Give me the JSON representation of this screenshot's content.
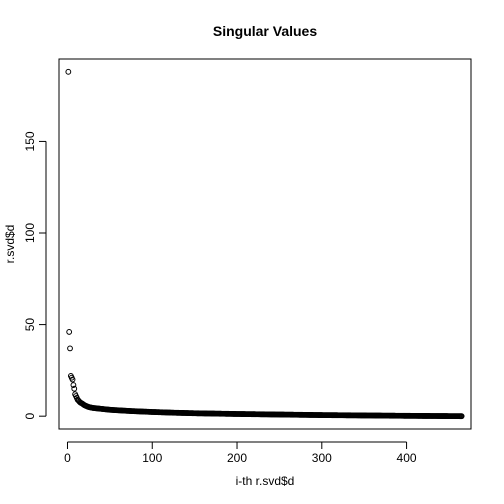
{
  "chart_data": {
    "type": "scatter",
    "title": "Singular Values",
    "xlabel": "i-th r.svd$d",
    "ylabel": "r.svd$d",
    "xlim": [
      -10,
      476
    ],
    "ylim": [
      -7,
      195
    ],
    "x_ticks": [
      0,
      100,
      200,
      300,
      400
    ],
    "y_ticks": [
      0,
      50,
      100,
      150
    ],
    "x_tick_labels": [
      "0",
      "100",
      "200",
      "300",
      "400"
    ],
    "y_tick_labels": [
      "0",
      "50",
      "100",
      "150"
    ],
    "grid": false,
    "marker": "open-circle",
    "n_points": 465,
    "points": [
      {
        "x": 1,
        "y": 188
      },
      {
        "x": 2,
        "y": 46
      },
      {
        "x": 3,
        "y": 37
      },
      {
        "x": 4,
        "y": 22
      },
      {
        "x": 5,
        "y": 21
      },
      {
        "x": 6,
        "y": 20
      },
      {
        "x": 7,
        "y": 17
      },
      {
        "x": 8,
        "y": 15
      },
      {
        "x": 9,
        "y": 12
      },
      {
        "x": 10,
        "y": 11
      },
      {
        "x": 11,
        "y": 10
      },
      {
        "x": 12,
        "y": 9
      },
      {
        "x": 13,
        "y": 8.5
      },
      {
        "x": 14,
        "y": 8
      },
      {
        "x": 15,
        "y": 7.5
      },
      {
        "x": 17,
        "y": 7
      },
      {
        "x": 20,
        "y": 6
      },
      {
        "x": 25,
        "y": 5
      },
      {
        "x": 30,
        "y": 4.5
      },
      {
        "x": 40,
        "y": 4
      },
      {
        "x": 50,
        "y": 3.5
      },
      {
        "x": 60,
        "y": 3.2
      },
      {
        "x": 75,
        "y": 2.8
      },
      {
        "x": 100,
        "y": 2.3
      },
      {
        "x": 125,
        "y": 1.9
      },
      {
        "x": 150,
        "y": 1.6
      },
      {
        "x": 200,
        "y": 1.2
      },
      {
        "x": 250,
        "y": 0.9
      },
      {
        "x": 300,
        "y": 0.6
      },
      {
        "x": 350,
        "y": 0.4
      },
      {
        "x": 400,
        "y": 0.2
      },
      {
        "x": 465,
        "y": 0.0
      }
    ]
  }
}
